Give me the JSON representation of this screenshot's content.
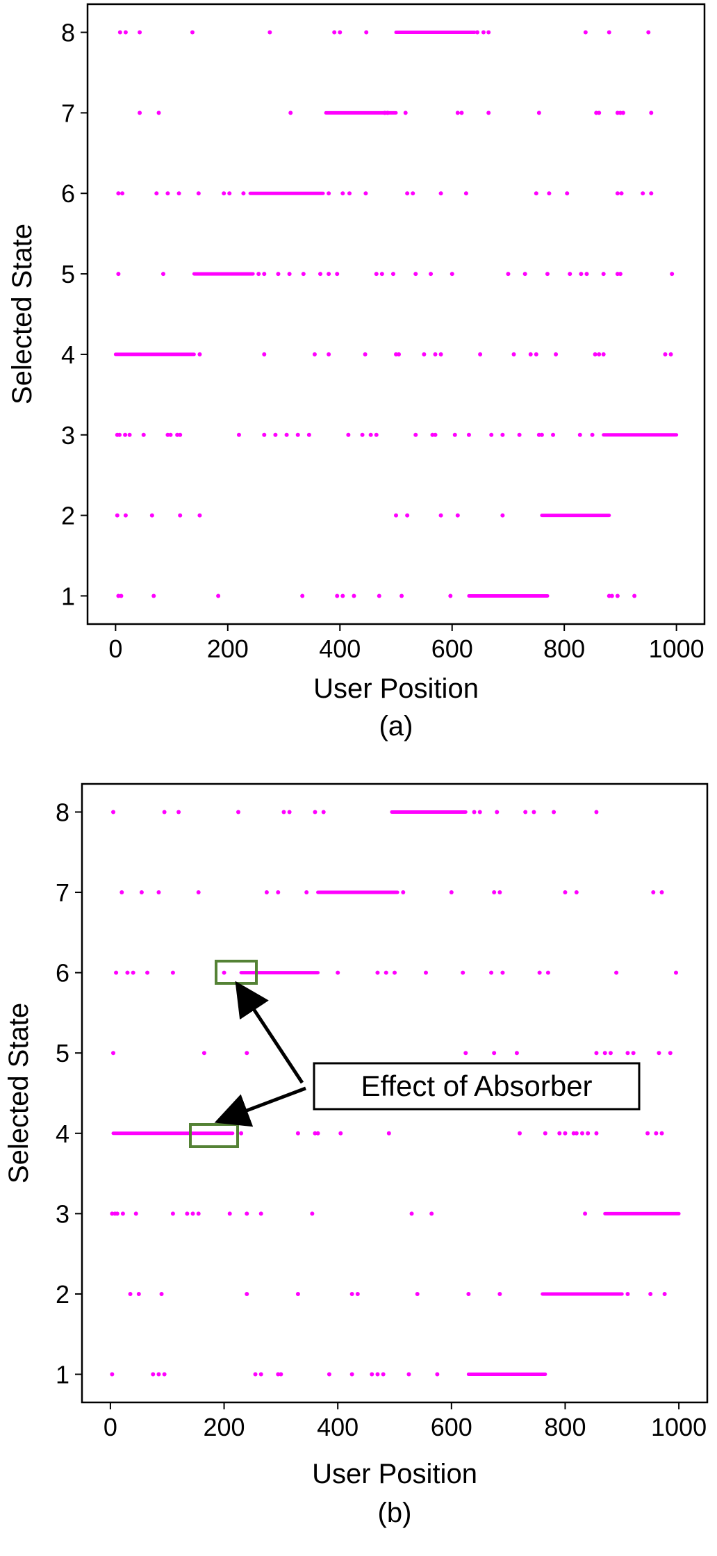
{
  "chart_data": [
    {
      "type": "scatter",
      "caption": "(a)",
      "xlabel": "User Position",
      "ylabel": "Selected State",
      "xlim": [
        -50,
        1050
      ],
      "ylim": [
        0.65,
        8.35
      ],
      "xticks": [
        0,
        200,
        400,
        600,
        800,
        1000
      ],
      "yticks": [
        1,
        2,
        3,
        4,
        5,
        6,
        7,
        8
      ],
      "marker_color": "#ff00ff",
      "grid": false,
      "legend": "none",
      "dense_ranges": [
        {
          "state": 8,
          "x": [
            500,
            640
          ]
        },
        {
          "state": 7,
          "x": [
            375,
            500
          ]
        },
        {
          "state": 6,
          "x": [
            240,
            370
          ]
        },
        {
          "state": 5,
          "x": [
            140,
            245
          ]
        },
        {
          "state": 4,
          "x": [
            0,
            140
          ]
        },
        {
          "state": 3,
          "x": [
            870,
            1000
          ]
        },
        {
          "state": 2,
          "x": [
            760,
            880
          ]
        },
        {
          "state": 1,
          "x": [
            630,
            770
          ]
        }
      ],
      "points": [
        {
          "state": 8,
          "x": [
            8,
            18,
            43,
            137,
            275,
            390,
            400,
            447,
            645,
            656,
            665,
            838,
            880,
            950
          ]
        },
        {
          "state": 7,
          "x": [
            43,
            77,
            312,
            480,
            485,
            517,
            610,
            617,
            665,
            755,
            857,
            862,
            895,
            900,
            905,
            955
          ]
        },
        {
          "state": 6,
          "x": [
            5,
            12,
            73,
            93,
            113,
            148,
            193,
            203,
            228,
            380,
            405,
            417,
            446,
            520,
            530,
            580,
            625,
            750,
            773,
            805,
            895,
            902,
            940,
            955
          ]
        },
        {
          "state": 5,
          "x": [
            5,
            85,
            255,
            265,
            290,
            310,
            335,
            365,
            380,
            395,
            465,
            475,
            495,
            535,
            562,
            600,
            700,
            730,
            770,
            810,
            830,
            840,
            870,
            895,
            900,
            992
          ]
        },
        {
          "state": 4,
          "x": [
            150,
            265,
            355,
            380,
            445,
            500,
            505,
            550,
            570,
            580,
            650,
            710,
            740,
            750,
            785,
            855,
            862,
            870,
            980,
            990
          ]
        },
        {
          "state": 3,
          "x": [
            3,
            7,
            17,
            25,
            50,
            93,
            98,
            110,
            115,
            220,
            265,
            285,
            305,
            325,
            345,
            415,
            440,
            455,
            465,
            535,
            565,
            570,
            605,
            630,
            670,
            690,
            720,
            755,
            760,
            780,
            828,
            850
          ]
        },
        {
          "state": 2,
          "x": [
            3,
            18,
            65,
            115,
            150,
            500,
            520,
            580,
            610,
            690
          ]
        },
        {
          "state": 1,
          "x": [
            5,
            10,
            68,
            183,
            333,
            395,
            405,
            425,
            470,
            510,
            597,
            880,
            885,
            895,
            925
          ]
        }
      ]
    },
    {
      "type": "scatter",
      "caption": "(b)",
      "xlabel": "User Position",
      "ylabel": "Selected State",
      "xlim": [
        -50,
        1050
      ],
      "ylim": [
        0.65,
        8.35
      ],
      "xticks": [
        0,
        200,
        400,
        600,
        800,
        1000
      ],
      "yticks": [
        1,
        2,
        3,
        4,
        5,
        6,
        7,
        8
      ],
      "marker_color": "#ff00ff",
      "grid": false,
      "legend": "none",
      "annotation": {
        "text": "Effect of Absorber",
        "highlight_color": "#548235",
        "targets": [
          {
            "state": 6,
            "x": [
              190,
              260
            ]
          },
          {
            "state": 4,
            "x": [
              140,
              225
            ]
          }
        ]
      },
      "dense_ranges": [
        {
          "state": 8,
          "x": [
            495,
            625
          ]
        },
        {
          "state": 7,
          "x": [
            365,
            505
          ]
        },
        {
          "state": 6,
          "x": [
            230,
            365
          ]
        },
        {
          "state": 4,
          "x": [
            5,
            215
          ]
        },
        {
          "state": 3,
          "x": [
            870,
            1000
          ]
        },
        {
          "state": 2,
          "x": [
            760,
            900
          ]
        },
        {
          "state": 1,
          "x": [
            630,
            765
          ]
        }
      ],
      "points": [
        {
          "state": 8,
          "x": [
            5,
            95,
            120,
            225,
            305,
            315,
            360,
            375,
            640,
            650,
            680,
            730,
            745,
            780,
            855
          ]
        },
        {
          "state": 7,
          "x": [
            20,
            55,
            85,
            155,
            275,
            295,
            345,
            515,
            600,
            675,
            685,
            800,
            820,
            955,
            970
          ]
        },
        {
          "state": 6,
          "x": [
            10,
            30,
            40,
            65,
            110,
            200,
            400,
            470,
            485,
            500,
            555,
            620,
            670,
            690,
            755,
            770,
            890,
            995
          ]
        },
        {
          "state": 5,
          "x": [
            5,
            165,
            240,
            625,
            675,
            715,
            855,
            870,
            880,
            910,
            920,
            965,
            985
          ]
        },
        {
          "state": 4,
          "x": [
            230,
            330,
            360,
            365,
            405,
            490,
            720,
            765,
            790,
            800,
            815,
            820,
            830,
            840,
            855,
            945,
            960,
            970
          ]
        },
        {
          "state": 3,
          "x": [
            3,
            8,
            12,
            22,
            45,
            110,
            135,
            145,
            155,
            210,
            240,
            265,
            355,
            530,
            565,
            835
          ]
        },
        {
          "state": 2,
          "x": [
            35,
            50,
            90,
            240,
            330,
            425,
            435,
            540,
            630,
            685,
            910,
            950,
            975
          ]
        },
        {
          "state": 1,
          "x": [
            3,
            75,
            85,
            95,
            255,
            265,
            295,
            300,
            385,
            425,
            460,
            470,
            480,
            525,
            575
          ]
        }
      ]
    }
  ]
}
